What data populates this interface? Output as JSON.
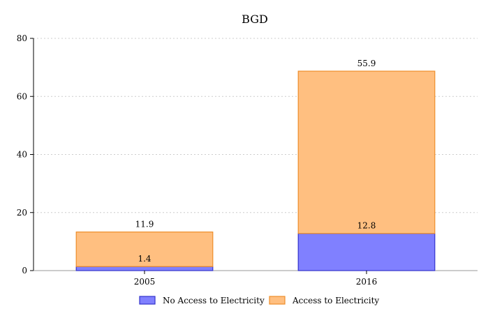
{
  "chart_data": {
    "type": "bar",
    "stacked": true,
    "title": "BGD",
    "xlabel": "",
    "ylabel": "",
    "categories": [
      "2005",
      "2016"
    ],
    "ylim": [
      0,
      80
    ],
    "yticks": [
      0,
      20,
      40,
      60,
      80
    ],
    "grid": true,
    "legend_position": "bottom",
    "series": [
      {
        "name": "No Access to Electricity",
        "values": [
          1.4,
          12.8
        ],
        "color": "#8080ff",
        "stroke": "#3333cc"
      },
      {
        "name": "Access to Electricity",
        "values": [
          11.9,
          55.9
        ],
        "color": "#ffbf80",
        "stroke": "#ee8e2a"
      }
    ]
  }
}
